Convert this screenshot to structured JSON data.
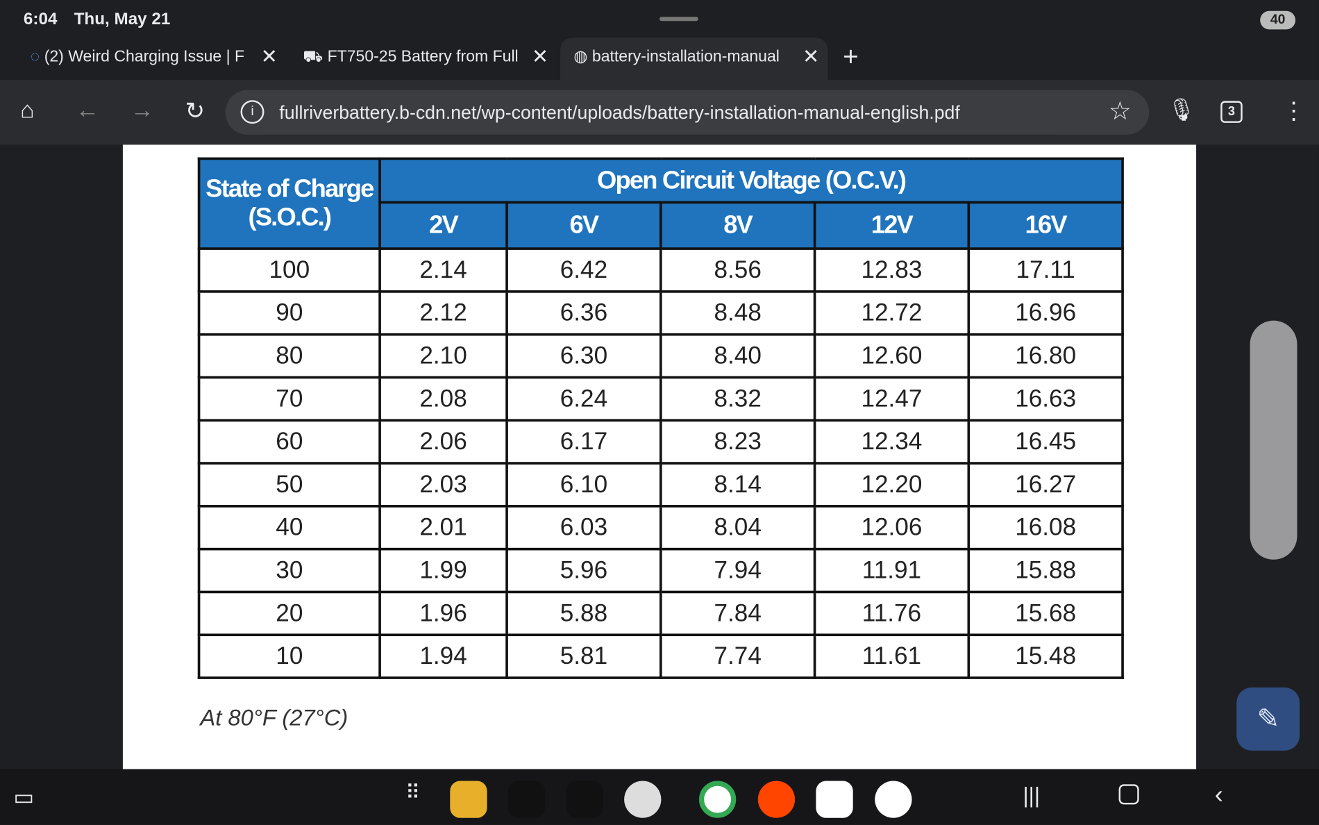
{
  "status_bar": {
    "time": "6:04",
    "date": "Thu, May 21",
    "battery": "40"
  },
  "tabs": [
    {
      "title": "(2) Weird Charging Issue | F"
    },
    {
      "title": "FT750-25 Battery from Full"
    },
    {
      "title": "battery-installation-manual"
    }
  ],
  "toolbar": {
    "url": "fullriverbattery.b-cdn.net/wp-content/uploads/battery-installation-manual-english.pdf",
    "tab_count": "3"
  },
  "table": {
    "header": {
      "soc_line1": "State of Charge",
      "soc_line2": "(S.O.C.)",
      "ocv": "Open Circuit Voltage (O.C.V.)",
      "columns": [
        "2V",
        "6V",
        "8V",
        "12V",
        "16V"
      ]
    },
    "rows": [
      [
        "100",
        "2.14",
        "6.42",
        "8.56",
        "12.83",
        "17.11"
      ],
      [
        "90",
        "2.12",
        "6.36",
        "8.48",
        "12.72",
        "16.96"
      ],
      [
        "80",
        "2.10",
        "6.30",
        "8.40",
        "12.60",
        "16.80"
      ],
      [
        "70",
        "2.08",
        "6.24",
        "8.32",
        "12.47",
        "16.63"
      ],
      [
        "60",
        "2.06",
        "6.17",
        "8.23",
        "12.34",
        "16.45"
      ],
      [
        "50",
        "2.03",
        "6.10",
        "8.14",
        "12.20",
        "16.27"
      ],
      [
        "40",
        "2.01",
        "6.03",
        "8.04",
        "12.06",
        "16.08"
      ],
      [
        "30",
        "1.99",
        "5.96",
        "7.94",
        "11.91",
        "15.88"
      ],
      [
        "20",
        "1.96",
        "5.88",
        "7.84",
        "11.76",
        "15.68"
      ],
      [
        "10",
        "1.94",
        "5.81",
        "7.74",
        "11.61",
        "15.48"
      ]
    ]
  },
  "footnote": "At 80°F (27°C)"
}
